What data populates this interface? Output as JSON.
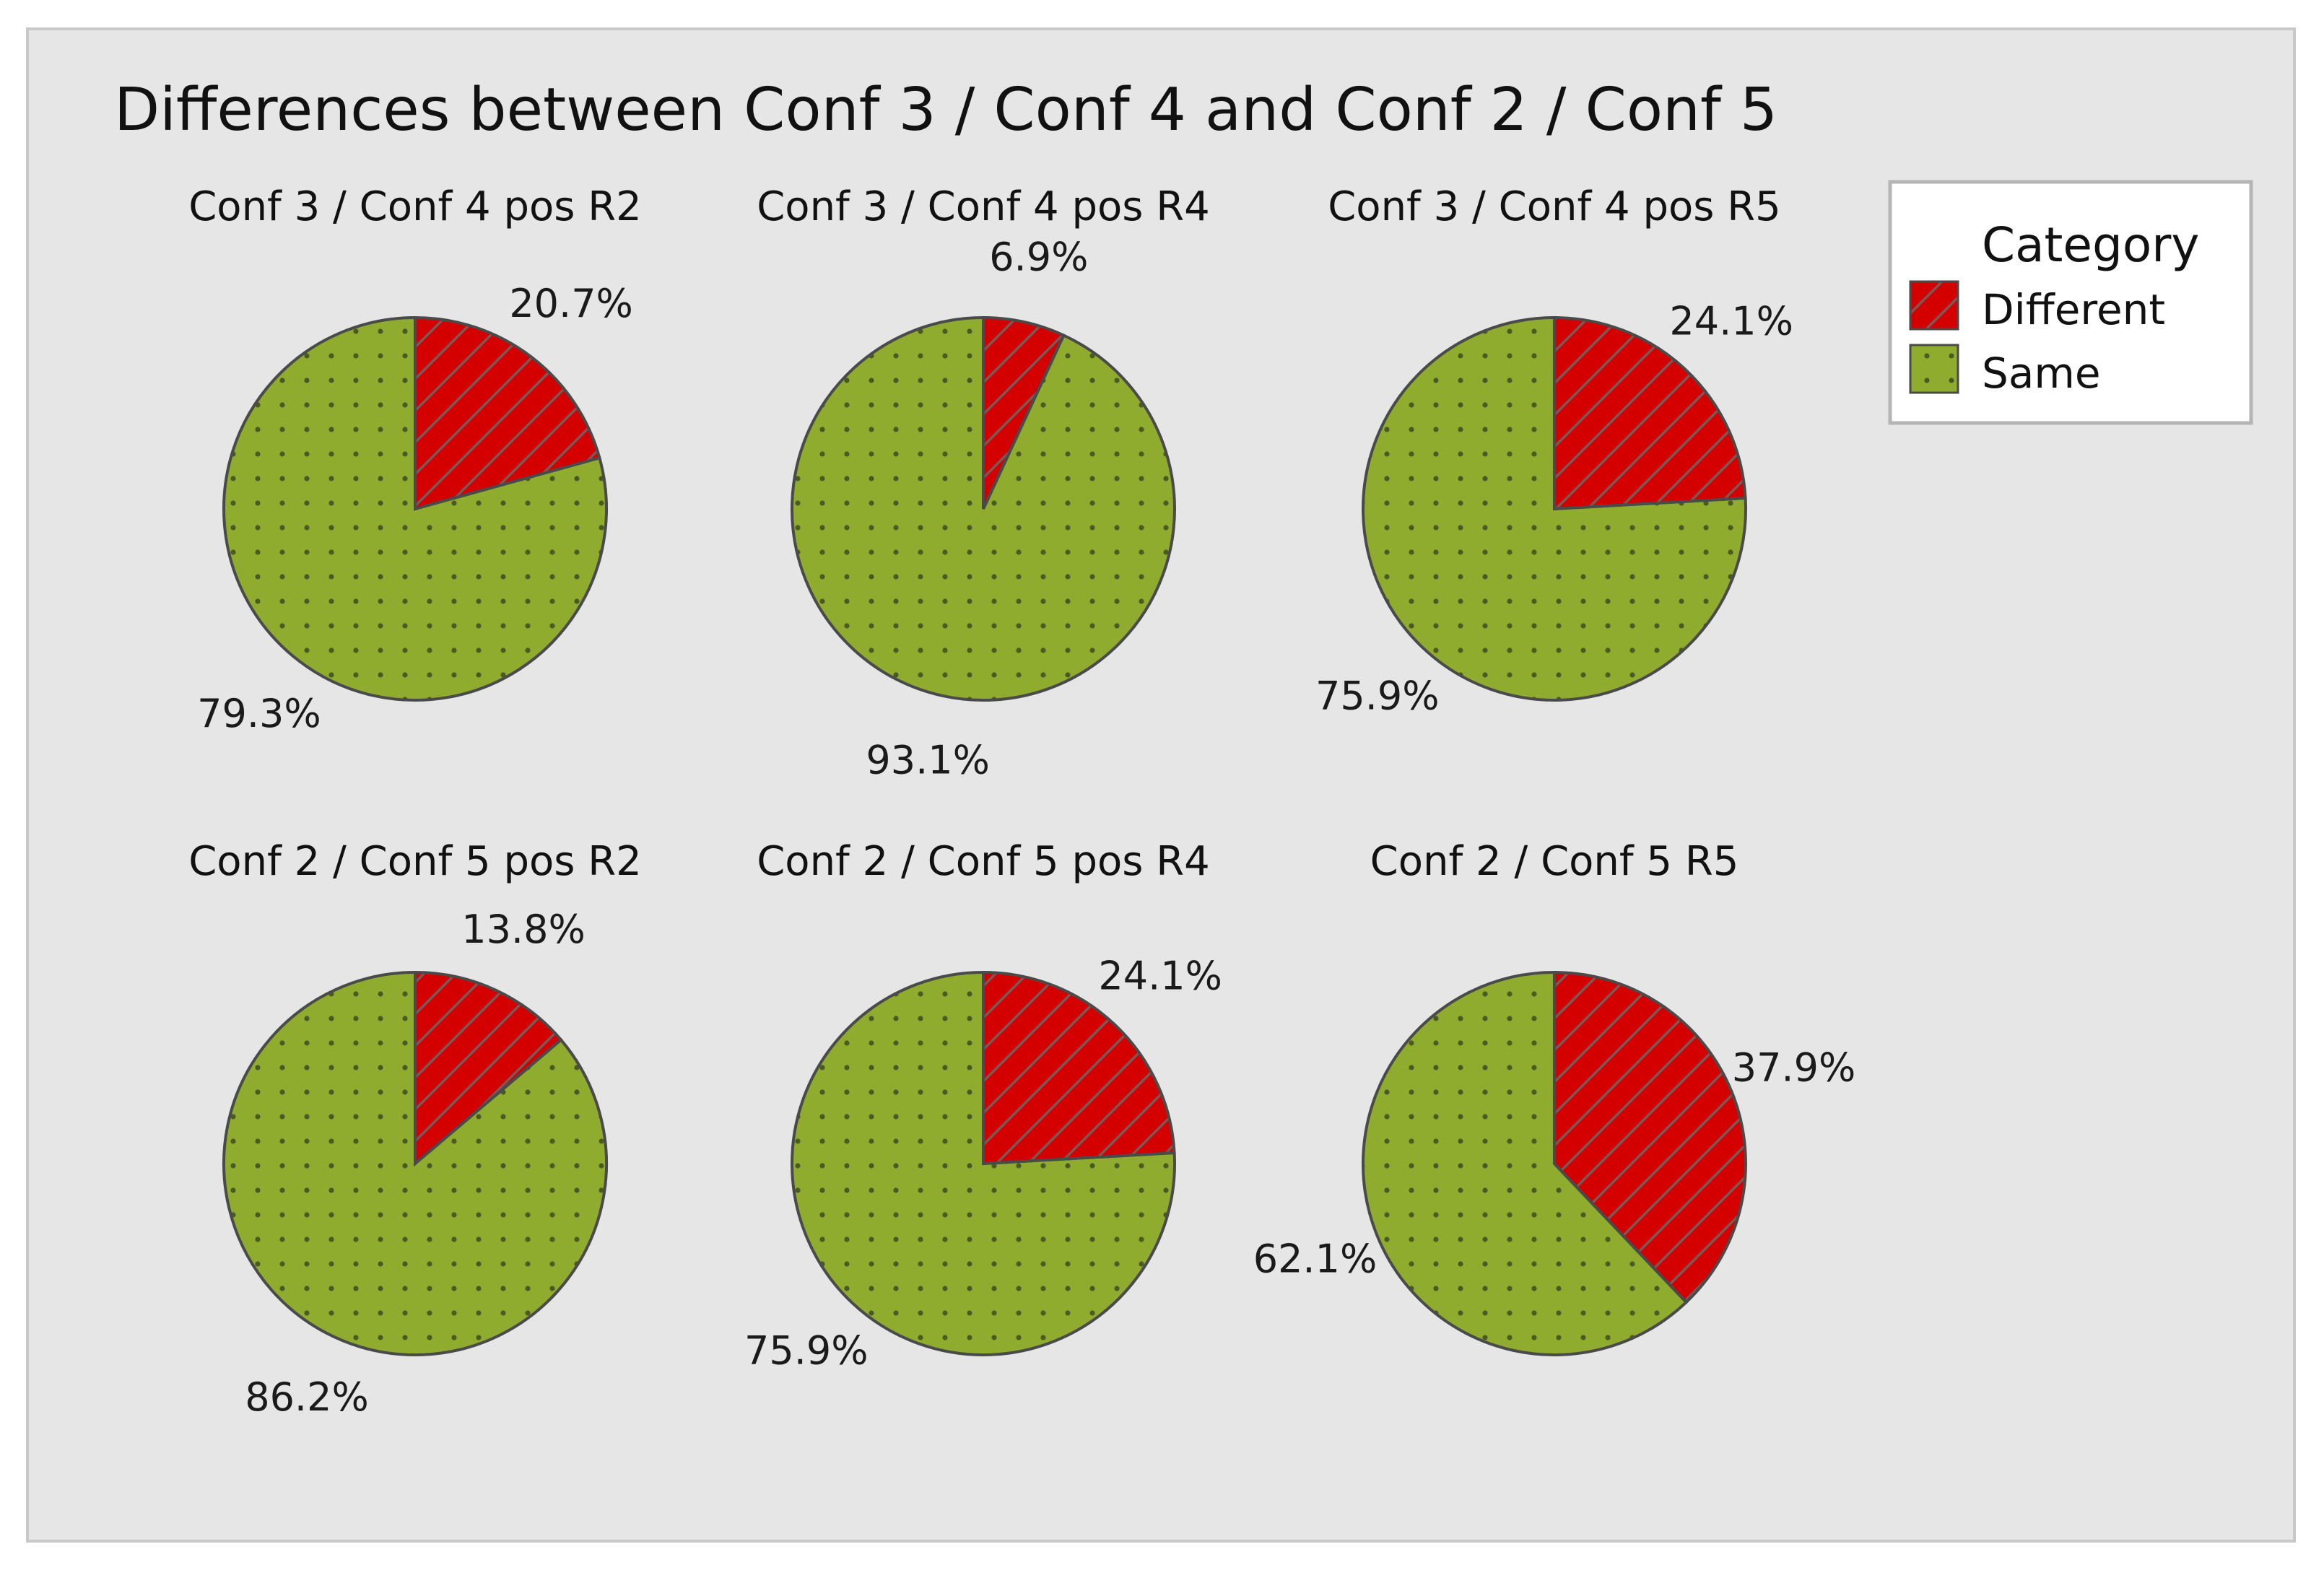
{
  "colors": {
    "different": "#d40000",
    "same": "#8fac2e",
    "hatch": "#7a5858",
    "dots": "#4b5a24"
  },
  "chart_data": {
    "type": "pie",
    "title": "Differences between Conf 3 / Conf 4 and Conf 2 / Conf 5",
    "legend": {
      "title": "Category",
      "position": "top-right",
      "entries": [
        {
          "key": "different",
          "label": "Different"
        },
        {
          "key": "same",
          "label": "Same"
        }
      ]
    },
    "pies": [
      {
        "id": "c34-r2",
        "title": "Conf 3 / Conf 4 pos R2",
        "different": 20.7,
        "same": 79.3,
        "different_label": "20.7%",
        "same_label": "79.3%"
      },
      {
        "id": "c34-r4",
        "title": "Conf 3 / Conf 4 pos R4",
        "different": 6.9,
        "same": 93.1,
        "different_label": "6.9%",
        "same_label": "93.1%"
      },
      {
        "id": "c34-r5",
        "title": "Conf 3 / Conf 4 pos R5",
        "different": 24.1,
        "same": 75.9,
        "different_label": "24.1%",
        "same_label": "75.9%"
      },
      {
        "id": "c25-r2",
        "title": "Conf 2 / Conf 5 pos R2",
        "different": 13.8,
        "same": 86.2,
        "different_label": "13.8%",
        "same_label": "86.2%"
      },
      {
        "id": "c25-r4",
        "title": "Conf 2 / Conf 5 pos R4",
        "different": 24.1,
        "same": 75.9,
        "different_label": "24.1%",
        "same_label": "75.9%"
      },
      {
        "id": "c25-r5",
        "title": "Conf 2 / Conf 5 R5",
        "different": 37.9,
        "same": 62.1,
        "different_label": "37.9%",
        "same_label": "62.1%"
      }
    ]
  }
}
